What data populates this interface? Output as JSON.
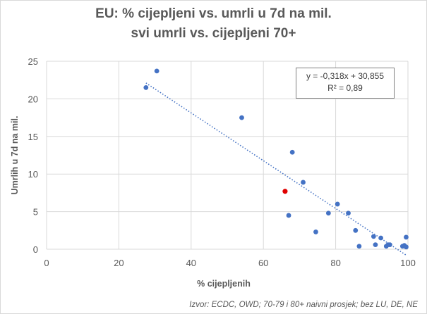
{
  "chart_data": {
    "type": "scatter",
    "title_line1": "EU: % cijepljeni vs. umrli u 7d na mil.",
    "title_line2": "svi umrli vs. cijepljeni 70+",
    "xlabel": "% cijepljenih",
    "ylabel": "Umrlih u 7d na mil.",
    "xlim": [
      0,
      100
    ],
    "ylim": [
      0,
      25
    ],
    "x_ticks": [
      0,
      20,
      40,
      60,
      80,
      100
    ],
    "y_ticks": [
      0,
      5,
      10,
      15,
      20,
      25
    ],
    "grid": true,
    "points": [
      {
        "x": 27.5,
        "y": 21.5
      },
      {
        "x": 30.5,
        "y": 23.7
      },
      {
        "x": 54.0,
        "y": 17.5
      },
      {
        "x": 67.0,
        "y": 4.5
      },
      {
        "x": 68.0,
        "y": 12.9
      },
      {
        "x": 71.0,
        "y": 8.9
      },
      {
        "x": 74.5,
        "y": 2.3
      },
      {
        "x": 78.0,
        "y": 4.8
      },
      {
        "x": 80.5,
        "y": 6.0
      },
      {
        "x": 83.5,
        "y": 4.8
      },
      {
        "x": 85.5,
        "y": 2.5
      },
      {
        "x": 86.5,
        "y": 0.4
      },
      {
        "x": 90.5,
        "y": 1.7
      },
      {
        "x": 91.0,
        "y": 0.6
      },
      {
        "x": 92.5,
        "y": 1.5
      },
      {
        "x": 94.0,
        "y": 0.4
      },
      {
        "x": 94.5,
        "y": 0.6
      },
      {
        "x": 95.0,
        "y": 0.6
      },
      {
        "x": 98.5,
        "y": 0.4
      },
      {
        "x": 99.0,
        "y": 0.5
      },
      {
        "x": 99.5,
        "y": 1.6
      },
      {
        "x": 99.5,
        "y": 0.3
      }
    ],
    "highlight_point": {
      "x": 66.0,
      "y": 7.7
    },
    "trendline": {
      "equation": "y = -0,318x + 30,855",
      "r2": "R² = 0,89",
      "slope": -0.318,
      "intercept": 30.855,
      "x_range": [
        27.5,
        99.5
      ]
    },
    "source_note": "Izvor: ECDC, OWD; 70-79 i 80+ naivni prosjek; bez LU, DE, NE",
    "colors": {
      "point": "#4472c4",
      "highlight": "#e00000",
      "trendline": "#4472c4",
      "grid": "#d9d9d9",
      "text": "#595959"
    }
  }
}
